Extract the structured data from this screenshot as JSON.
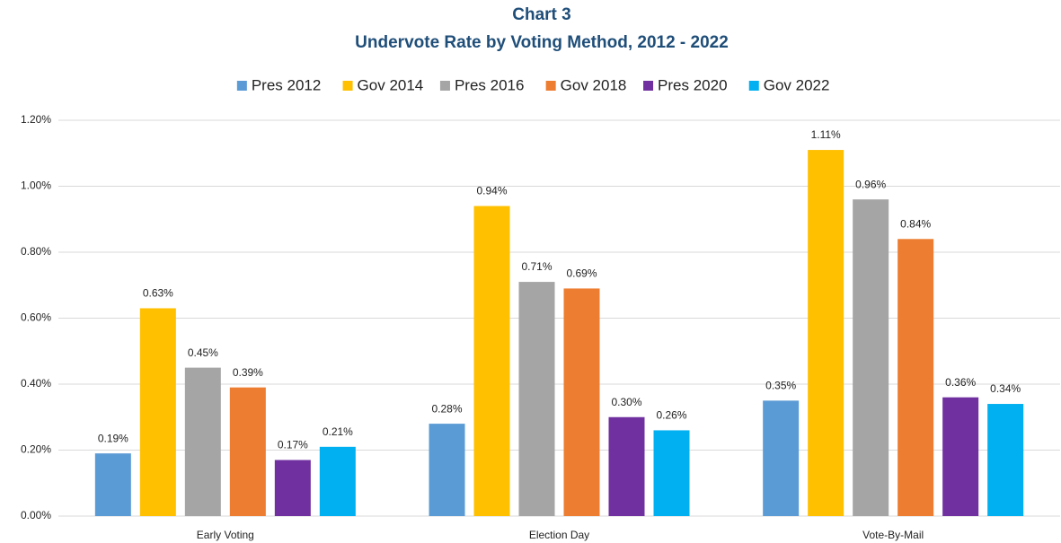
{
  "chart_data": {
    "type": "bar",
    "title": "Chart 3",
    "subtitle": "Undervote Rate by Voting Method, 2012 - 2022",
    "categories": [
      "Early Voting",
      "Election Day",
      "Vote-By-Mail"
    ],
    "series": [
      {
        "name": "Pres 2012",
        "color": "#5b9bd5",
        "values": [
          0.19,
          0.28,
          0.35
        ],
        "value_labels": [
          "0.19%",
          "0.28%",
          "0.35%"
        ]
      },
      {
        "name": "Gov 2014",
        "color": "#ffc000",
        "values": [
          0.63,
          0.94,
          1.11
        ],
        "value_labels": [
          "0.63%",
          "0.94%",
          "1.11%"
        ]
      },
      {
        "name": "Pres 2016",
        "color": "#a5a5a5",
        "values": [
          0.45,
          0.71,
          0.96
        ],
        "value_labels": [
          "0.45%",
          "0.71%",
          "0.96%"
        ]
      },
      {
        "name": "Gov 2018",
        "color": "#ed7d31",
        "values": [
          0.39,
          0.69,
          0.84
        ],
        "value_labels": [
          "0.39%",
          "0.69%",
          "0.84%"
        ]
      },
      {
        "name": "Pres 2020",
        "color": "#7030a0",
        "values": [
          0.17,
          0.3,
          0.36
        ],
        "value_labels": [
          "0.17%",
          "0.30%",
          "0.36%"
        ]
      },
      {
        "name": "Gov 2022",
        "color": "#00b0f0",
        "values": [
          0.21,
          0.26,
          0.34
        ],
        "value_labels": [
          "0.21%",
          "0.26%",
          "0.34%"
        ]
      }
    ],
    "ylim": [
      0,
      1.2
    ],
    "yticks": [
      {
        "value": 0,
        "label": "0.00%"
      },
      {
        "value": 0.2,
        "label": "0.20%"
      },
      {
        "value": 0.4,
        "label": "0.40%"
      },
      {
        "value": 0.6,
        "label": "0.60%"
      },
      {
        "value": 0.8,
        "label": "0.80%"
      },
      {
        "value": 1.0,
        "label": "1.00%"
      },
      {
        "value": 1.2,
        "label": "1.20%"
      }
    ],
    "grid": true,
    "legend": "top"
  }
}
